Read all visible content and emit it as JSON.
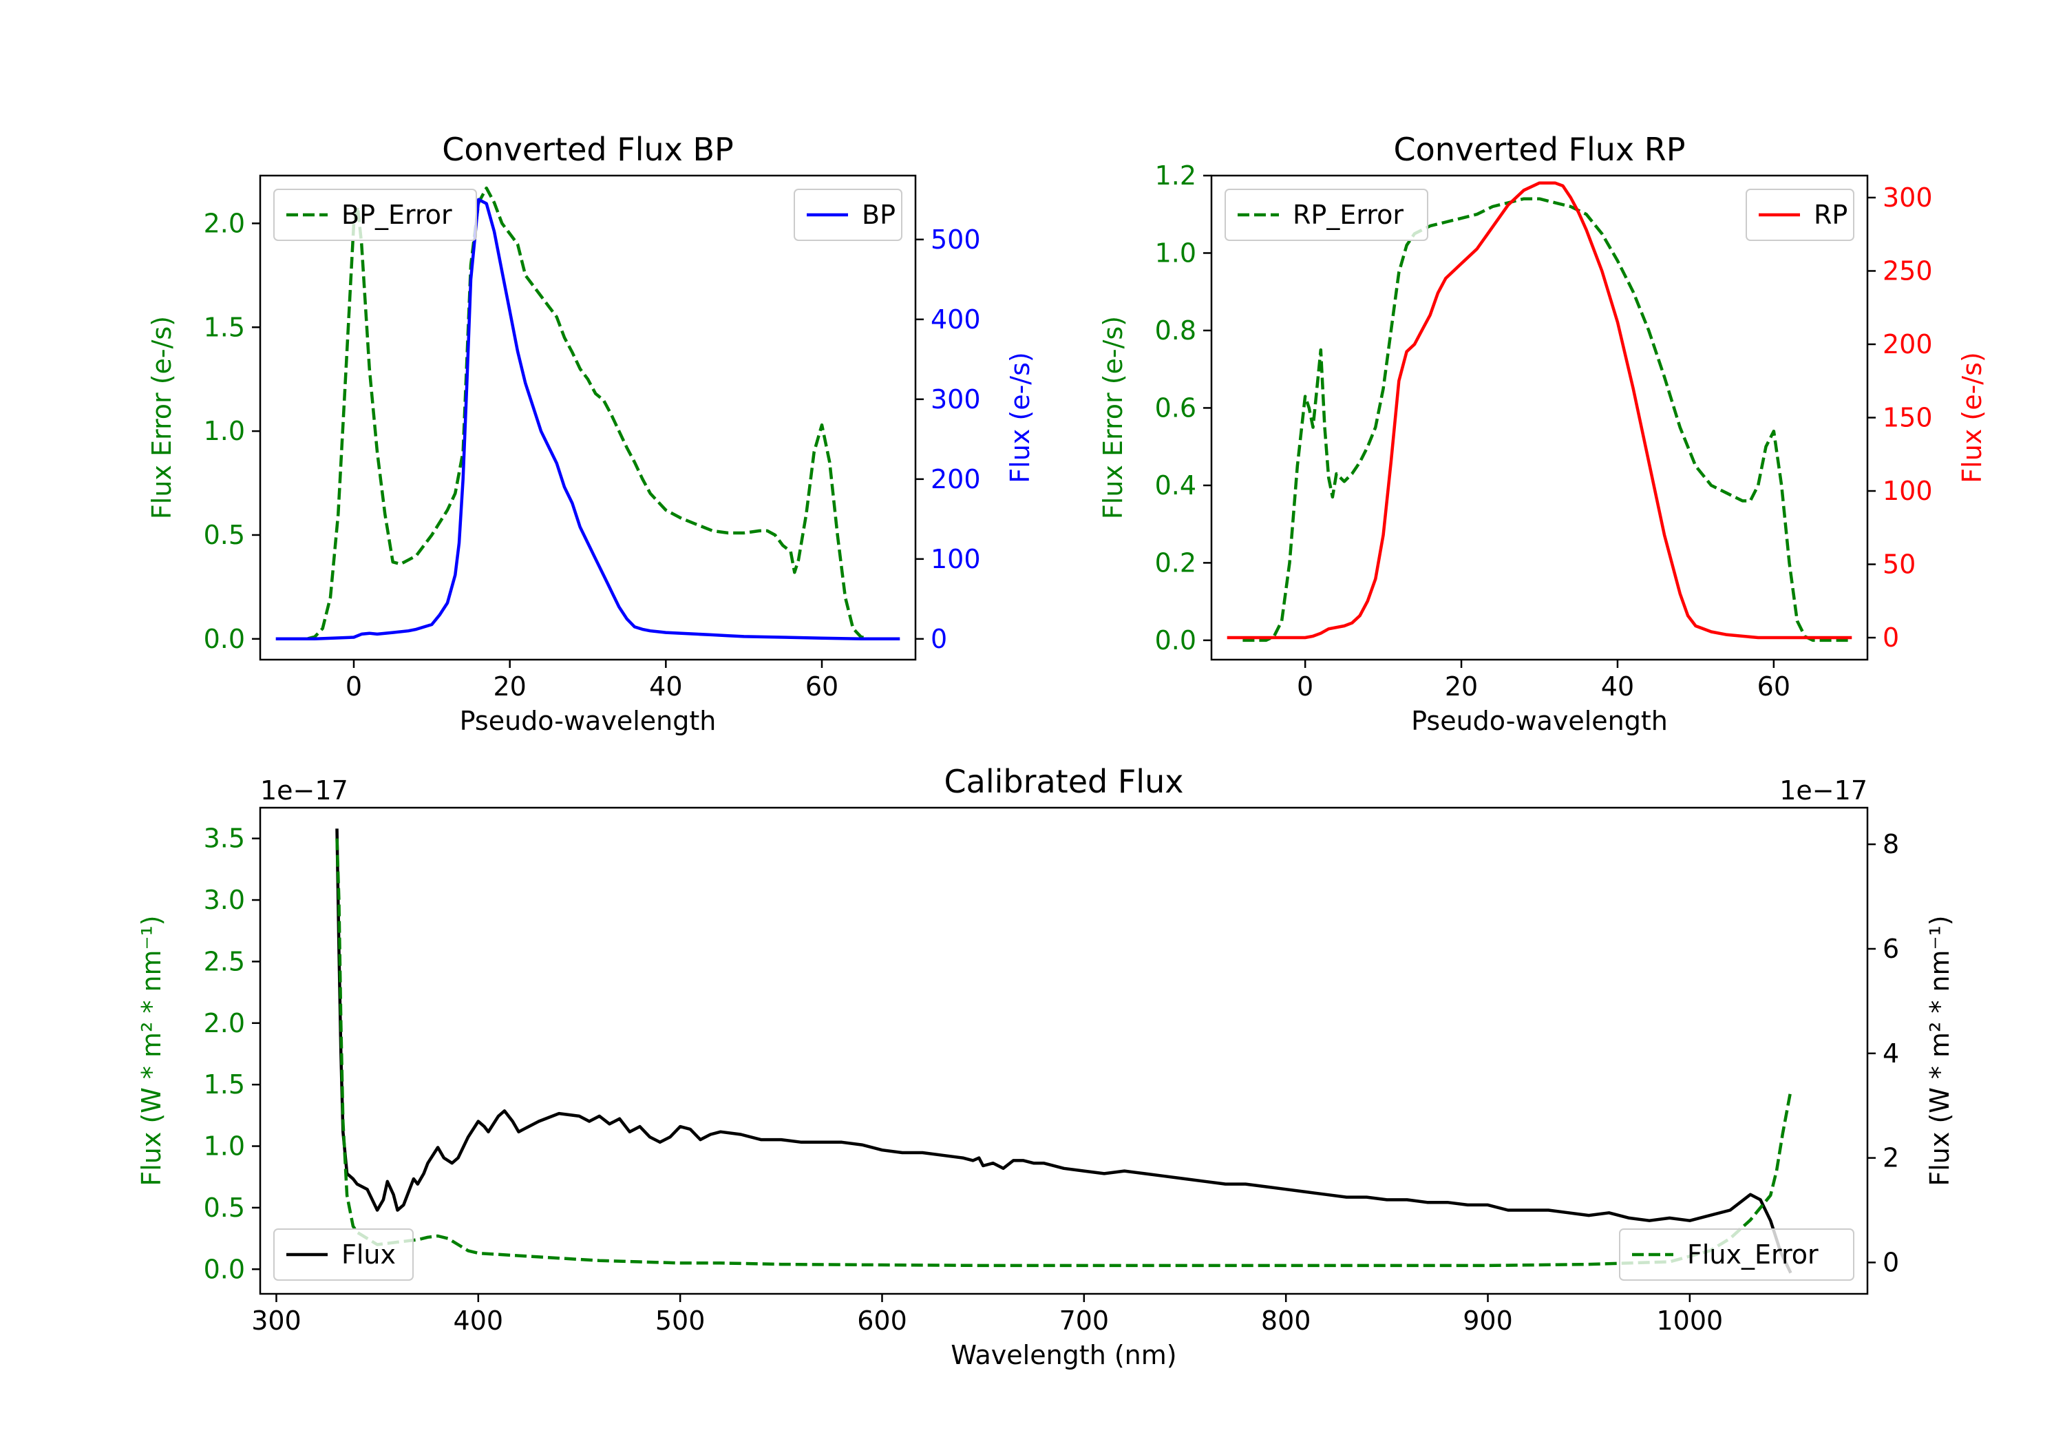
{
  "colors": {
    "error": "#008000",
    "bp": "#0000ff",
    "rp": "#ff0000",
    "flux": "#000000"
  },
  "chart_data": [
    {
      "id": "bp",
      "type": "line",
      "title": "Converted Flux BP",
      "xlabel": "Pseudo-wavelength",
      "ylabel_left": "Flux Error (e-/s)",
      "ylabel_right": "Flux (e-/s)",
      "xlim": [
        -12,
        72
      ],
      "ylim_left": [
        -0.1,
        2.23
      ],
      "ylim_right": [
        -26,
        580
      ],
      "xticks": [
        0,
        20,
        40,
        60
      ],
      "yticks_left": [
        0.0,
        0.5,
        1.0,
        1.5,
        2.0
      ],
      "yticks_right": [
        0,
        100,
        200,
        300,
        400,
        500
      ],
      "legend_left": "BP_Error",
      "legend_right": "BP",
      "series": [
        {
          "name": "BP_Error",
          "axis": "left",
          "style": "dashed",
          "color": "error",
          "x": [
            -8,
            -6,
            -5,
            -4,
            -3,
            -2,
            -1,
            0,
            0.5,
            1,
            2,
            3,
            4,
            5,
            6,
            7,
            8,
            10,
            12,
            13,
            14,
            15,
            16,
            17,
            18,
            19,
            20,
            21,
            22,
            24,
            25,
            26,
            27,
            28,
            29,
            30,
            31,
            32,
            33,
            34,
            35,
            36,
            37,
            38,
            40,
            42,
            44,
            46,
            48,
            50,
            52,
            53,
            54,
            55,
            56,
            56.5,
            57,
            58,
            59,
            60,
            61,
            62,
            63,
            64,
            65,
            66,
            68,
            70
          ],
          "y": [
            0.0,
            0.0,
            0.01,
            0.05,
            0.2,
            0.6,
            1.3,
            2.0,
            2.08,
            1.9,
            1.3,
            0.9,
            0.6,
            0.37,
            0.36,
            0.38,
            0.4,
            0.5,
            0.62,
            0.7,
            0.9,
            1.8,
            2.1,
            2.17,
            2.1,
            2.0,
            1.95,
            1.9,
            1.75,
            1.65,
            1.6,
            1.55,
            1.45,
            1.38,
            1.3,
            1.25,
            1.18,
            1.15,
            1.08,
            1.0,
            0.92,
            0.85,
            0.77,
            0.7,
            0.62,
            0.58,
            0.55,
            0.52,
            0.51,
            0.51,
            0.52,
            0.52,
            0.5,
            0.45,
            0.42,
            0.32,
            0.38,
            0.6,
            0.9,
            1.03,
            0.85,
            0.5,
            0.2,
            0.05,
            0.01,
            0.0,
            0.0,
            0.0
          ]
        },
        {
          "name": "BP",
          "axis": "right",
          "style": "solid",
          "color": "bp",
          "x": [
            -10,
            -5,
            0,
            1,
            2,
            3,
            5,
            7,
            8,
            10,
            11,
            12,
            13,
            13.5,
            14,
            14.5,
            15,
            16,
            17,
            18,
            19,
            20,
            21,
            22,
            23,
            24,
            25,
            26,
            27,
            28,
            29,
            30,
            31,
            32,
            33,
            34,
            35,
            36,
            37,
            38,
            39,
            40,
            42,
            44,
            46,
            48,
            50,
            55,
            60,
            65,
            70
          ],
          "y": [
            0,
            0,
            2,
            6,
            7,
            6,
            8,
            10,
            12,
            18,
            30,
            45,
            80,
            120,
            200,
            320,
            450,
            550,
            545,
            510,
            460,
            410,
            360,
            320,
            290,
            260,
            240,
            220,
            190,
            170,
            140,
            120,
            100,
            80,
            60,
            40,
            25,
            15,
            12,
            10,
            9,
            8,
            7,
            6,
            5,
            4,
            3,
            2,
            1,
            0,
            0
          ]
        }
      ]
    },
    {
      "id": "rp",
      "type": "line",
      "title": "Converted Flux RP",
      "xlabel": "Pseudo-wavelength",
      "ylabel_left": "Flux Error (e-/s)",
      "ylabel_right": "Flux (e-/s)",
      "xlim": [
        -12,
        72
      ],
      "ylim_left": [
        -0.05,
        1.2
      ],
      "ylim_right": [
        -15,
        315
      ],
      "xticks": [
        0,
        20,
        40,
        60
      ],
      "yticks_left": [
        0.0,
        0.2,
        0.4,
        0.6,
        0.8,
        1.0,
        1.2
      ],
      "yticks_right": [
        0,
        50,
        100,
        150,
        200,
        250,
        300
      ],
      "legend_left": "RP_Error",
      "legend_right": "RP",
      "series": [
        {
          "name": "RP_Error",
          "axis": "left",
          "style": "dashed",
          "color": "error",
          "x": [
            -8,
            -5,
            -4,
            -3,
            -2,
            -1,
            0,
            0.5,
            1,
            1.5,
            2,
            2.5,
            3,
            3.5,
            4,
            5,
            6,
            7,
            8,
            9,
            10,
            11,
            12,
            13,
            14,
            16,
            18,
            20,
            22,
            24,
            26,
            28,
            30,
            32,
            34,
            36,
            38,
            40,
            42,
            44,
            46,
            48,
            50,
            52,
            54,
            56,
            57,
            58,
            59,
            60,
            61,
            62,
            63,
            64,
            65,
            66,
            68,
            70
          ],
          "y": [
            0.0,
            0.0,
            0.01,
            0.05,
            0.2,
            0.45,
            0.63,
            0.6,
            0.55,
            0.65,
            0.75,
            0.55,
            0.42,
            0.37,
            0.43,
            0.41,
            0.43,
            0.46,
            0.5,
            0.55,
            0.65,
            0.8,
            0.95,
            1.02,
            1.05,
            1.07,
            1.08,
            1.09,
            1.1,
            1.12,
            1.13,
            1.14,
            1.14,
            1.13,
            1.12,
            1.1,
            1.05,
            0.98,
            0.9,
            0.8,
            0.68,
            0.55,
            0.45,
            0.4,
            0.38,
            0.36,
            0.36,
            0.4,
            0.5,
            0.54,
            0.4,
            0.2,
            0.05,
            0.01,
            0.0,
            0.0,
            0.0,
            0.0
          ]
        },
        {
          "name": "RP",
          "axis": "right",
          "style": "solid",
          "color": "rp",
          "x": [
            -10,
            -5,
            0,
            1,
            2,
            3,
            5,
            6,
            7,
            8,
            9,
            10,
            11,
            12,
            13,
            14,
            15,
            16,
            17,
            18,
            20,
            22,
            24,
            26,
            28,
            30,
            32,
            33,
            34,
            35,
            36,
            38,
            40,
            42,
            44,
            46,
            48,
            49,
            50,
            52,
            54,
            56,
            58,
            60,
            65,
            70
          ],
          "y": [
            0,
            0,
            0,
            1,
            3,
            6,
            8,
            10,
            15,
            25,
            40,
            70,
            120,
            175,
            195,
            200,
            210,
            220,
            235,
            245,
            255,
            265,
            280,
            295,
            305,
            310,
            310,
            308,
            300,
            290,
            278,
            250,
            215,
            170,
            120,
            70,
            30,
            15,
            8,
            4,
            2,
            1,
            0,
            0,
            0,
            0
          ]
        }
      ]
    },
    {
      "id": "calibrated",
      "type": "line",
      "title": "Calibrated Flux",
      "xlabel": "Wavelength (nm)",
      "ylabel_left": "Flux (W * m² * nm⁻¹)",
      "ylabel_right": "Flux (W * m² * nm⁻¹)",
      "offset_left": "1e−17",
      "offset_right": "1e−17",
      "xlim": [
        292,
        1088
      ],
      "ylim_left": [
        -0.2,
        3.75
      ],
      "ylim_right": [
        -0.6,
        8.7
      ],
      "xticks": [
        300,
        400,
        500,
        600,
        700,
        800,
        900,
        1000
      ],
      "yticks_left": [
        0.0,
        0.5,
        1.0,
        1.5,
        2.0,
        2.5,
        3.0,
        3.5
      ],
      "yticks_right": [
        0,
        2,
        4,
        6,
        8
      ],
      "legend_left": "Flux",
      "legend_right": "Flux_Error",
      "series": [
        {
          "name": "Flux",
          "axis": "right",
          "style": "solid",
          "color": "flux",
          "x": [
            330,
            331,
            332,
            333,
            335,
            338,
            340,
            345,
            350,
            353,
            355,
            358,
            360,
            363,
            365,
            368,
            370,
            373,
            375,
            380,
            383,
            387,
            390,
            395,
            400,
            403,
            405,
            410,
            413,
            417,
            420,
            425,
            430,
            440,
            450,
            455,
            460,
            465,
            470,
            475,
            480,
            485,
            490,
            495,
            500,
            505,
            510,
            515,
            520,
            530,
            540,
            550,
            560,
            570,
            580,
            590,
            600,
            610,
            620,
            630,
            640,
            645,
            648,
            650,
            655,
            660,
            665,
            670,
            675,
            680,
            690,
            700,
            710,
            720,
            730,
            740,
            750,
            760,
            770,
            780,
            790,
            800,
            810,
            820,
            830,
            840,
            850,
            860,
            870,
            880,
            890,
            900,
            910,
            920,
            930,
            940,
            950,
            960,
            970,
            980,
            990,
            1000,
            1010,
            1020,
            1030,
            1035,
            1040,
            1045,
            1050
          ],
          "y": [
            8.3,
            6.0,
            4.0,
            2.5,
            1.7,
            1.6,
            1.5,
            1.4,
            1.0,
            1.2,
            1.55,
            1.3,
            1.0,
            1.1,
            1.3,
            1.6,
            1.5,
            1.7,
            1.9,
            2.2,
            2.0,
            1.9,
            2.0,
            2.4,
            2.7,
            2.6,
            2.5,
            2.8,
            2.9,
            2.7,
            2.5,
            2.6,
            2.7,
            2.85,
            2.8,
            2.7,
            2.8,
            2.65,
            2.75,
            2.5,
            2.6,
            2.4,
            2.3,
            2.4,
            2.6,
            2.55,
            2.35,
            2.45,
            2.5,
            2.45,
            2.35,
            2.35,
            2.3,
            2.3,
            2.3,
            2.25,
            2.15,
            2.1,
            2.1,
            2.05,
            2.0,
            1.95,
            2.0,
            1.85,
            1.9,
            1.8,
            1.95,
            1.95,
            1.9,
            1.9,
            1.8,
            1.75,
            1.7,
            1.75,
            1.7,
            1.65,
            1.6,
            1.55,
            1.5,
            1.5,
            1.45,
            1.4,
            1.35,
            1.3,
            1.25,
            1.25,
            1.2,
            1.2,
            1.15,
            1.15,
            1.1,
            1.1,
            1.0,
            1.0,
            1.0,
            0.95,
            0.9,
            0.95,
            0.85,
            0.8,
            0.85,
            0.8,
            0.9,
            1.0,
            1.3,
            1.2,
            0.8,
            0.2,
            -0.2
          ]
        },
        {
          "name": "Flux_Error",
          "axis": "left",
          "style": "dashed",
          "color": "error",
          "x": [
            330,
            331,
            332,
            333,
            335,
            338,
            340,
            345,
            350,
            360,
            370,
            375,
            380,
            385,
            390,
            395,
            400,
            410,
            420,
            430,
            440,
            450,
            460,
            480,
            500,
            520,
            550,
            600,
            650,
            700,
            750,
            800,
            850,
            900,
            950,
            990,
            1010,
            1020,
            1030,
            1040,
            1043,
            1046,
            1050
          ],
          "y": [
            3.5,
            3.0,
            2.0,
            1.2,
            0.6,
            0.35,
            0.3,
            0.25,
            0.2,
            0.22,
            0.24,
            0.26,
            0.27,
            0.25,
            0.2,
            0.15,
            0.13,
            0.12,
            0.11,
            0.1,
            0.09,
            0.08,
            0.07,
            0.06,
            0.05,
            0.05,
            0.04,
            0.035,
            0.03,
            0.03,
            0.03,
            0.03,
            0.03,
            0.03,
            0.04,
            0.06,
            0.15,
            0.25,
            0.4,
            0.6,
            0.8,
            1.1,
            1.45
          ]
        }
      ]
    }
  ]
}
